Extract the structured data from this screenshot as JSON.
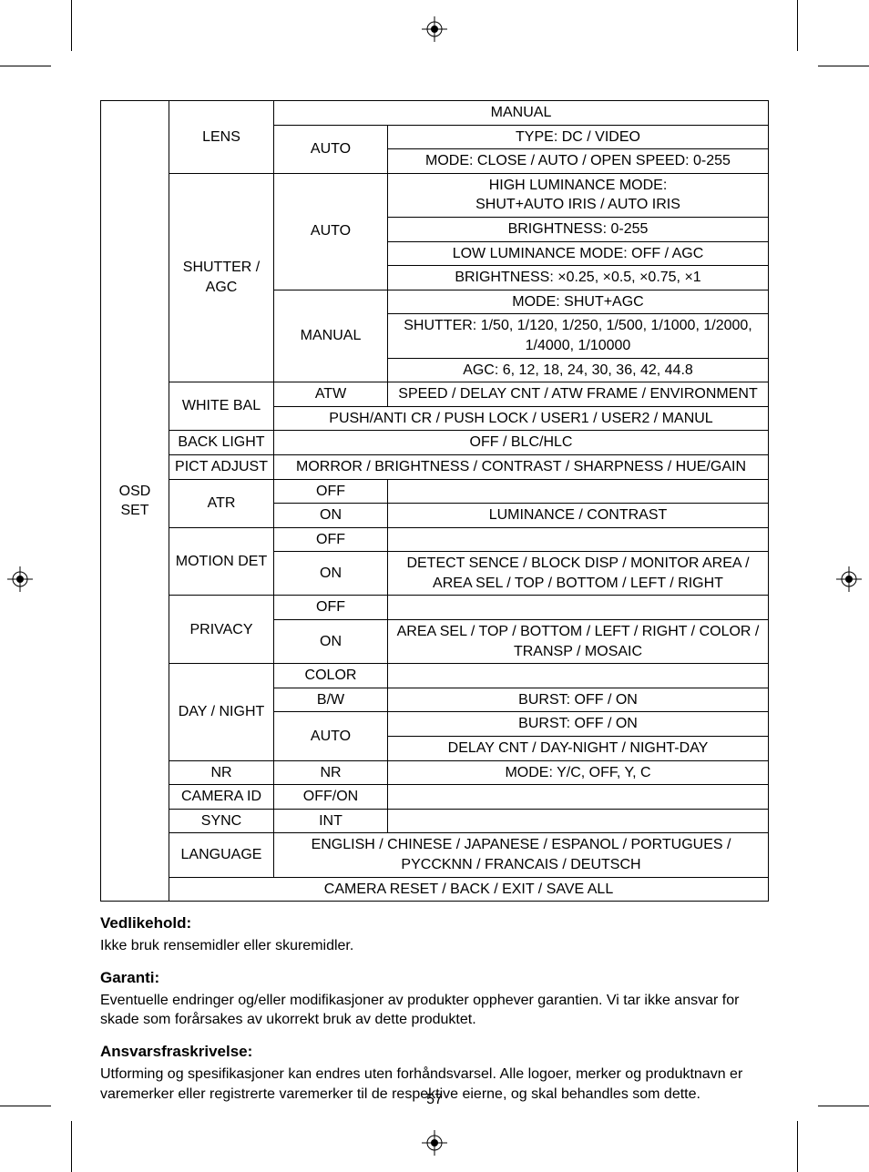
{
  "page_number": "57",
  "table": {
    "col1": "OSD SET",
    "rows": [
      {
        "c2": "LENS",
        "c2rowspan": 3,
        "c3": "MANUAL",
        "c3colspan": 2
      },
      {
        "c3": "AUTO",
        "c3rowspan": 2,
        "c4": "TYPE: DC / VIDEO"
      },
      {
        "c4": "MODE: CLOSE / AUTO / OPEN SPEED: 0-255"
      },
      {
        "c2": "SHUTTER / AGC",
        "c2rowspan": 7,
        "c3": "AUTO",
        "c3rowspan": 4,
        "c4": "HIGH LUMINANCE MODE:\nSHUT+AUTO IRIS / AUTO IRIS"
      },
      {
        "c4": "BRIGHTNESS: 0-255"
      },
      {
        "c4": "LOW LUMINANCE MODE: OFF / AGC"
      },
      {
        "c4": "BRIGHTNESS: ×0.25, ×0.5, ×0.75, ×1"
      },
      {
        "c3": "MANUAL",
        "c3rowspan": 3,
        "c4": "MODE: SHUT+AGC"
      },
      {
        "c4": "SHUTTER: 1/50, 1/120, 1/250, 1/500, 1/1000, 1/2000, 1/4000, 1/10000"
      },
      {
        "c4": "AGC: 6, 12, 18, 24, 30, 36, 42, 44.8"
      },
      {
        "c2": "WHITE BAL",
        "c2rowspan": 2,
        "c3": "ATW",
        "c4": "SPEED / DELAY CNT / ATW FRAME / ENVIRONMENT"
      },
      {
        "c3": "PUSH/ANTI CR / PUSH LOCK / USER1 / USER2 / MANUL",
        "c3colspan": 2
      },
      {
        "c2": "BACK LIGHT",
        "c3": "OFF / BLC/HLC",
        "c3colspan": 2
      },
      {
        "c2": "PICT ADJUST",
        "c3": "MORROR / BRIGHTNESS / CONTRAST / SHARPNESS / HUE/GAIN",
        "c3colspan": 2
      },
      {
        "c2": "ATR",
        "c2rowspan": 2,
        "c3": "OFF",
        "c4": ""
      },
      {
        "c3": "ON",
        "c4": "LUMINANCE / CONTRAST"
      },
      {
        "c2": "MOTION DET",
        "c2rowspan": 2,
        "c3": "OFF",
        "c4": ""
      },
      {
        "c3": "ON",
        "c4": "DETECT SENCE / BLOCK DISP / MONITOR AREA / AREA SEL / TOP / BOTTOM / LEFT / RIGHT"
      },
      {
        "c2": "PRIVACY",
        "c2rowspan": 2,
        "c3": "OFF",
        "c4": ""
      },
      {
        "c3": "ON",
        "c4": "AREA SEL / TOP / BOTTOM / LEFT / RIGHT / COLOR / TRANSP / MOSAIC"
      },
      {
        "c2": "DAY / NIGHT",
        "c2rowspan": 4,
        "c3": "COLOR",
        "c4": ""
      },
      {
        "c3": "B/W",
        "c4": "BURST: OFF / ON"
      },
      {
        "c3": "AUTO",
        "c3rowspan": 2,
        "c4": "BURST: OFF / ON"
      },
      {
        "c4": "DELAY CNT / DAY-NIGHT / NIGHT-DAY"
      },
      {
        "c2": "NR",
        "c3": "NR",
        "c4": "MODE: Y/C, OFF, Y, C"
      },
      {
        "c2": "CAMERA ID",
        "c3": "OFF/ON",
        "c4": ""
      },
      {
        "c2": "SYNC",
        "c3": "INT",
        "c4": ""
      },
      {
        "c2": "LANGUAGE",
        "c3": "ENGLISH / CHINESE / JAPANESE / ESPANOL / PORTUGUES / PYCCKNN / FRANCAIS / DEUTSCH",
        "c3colspan": 2
      },
      {
        "c2": "CAMERA RESET / BACK / EXIT / SAVE ALL",
        "c2colspan": 3
      }
    ]
  },
  "sections": [
    {
      "heading": "Vedlikehold:",
      "body": "Ikke bruk rensemidler eller skuremidler."
    },
    {
      "heading": "Garanti:",
      "body": "Eventuelle endringer og/eller modifikasjoner av produkter opphever garantien. Vi tar ikke ansvar for skade som forårsakes av ukorrekt bruk av dette produktet."
    },
    {
      "heading": "Ansvarsfraskrivelse:",
      "body": "Utforming og spesifikasjoner kan endres uten forhåndsvarsel. Alle logoer, merker og produktnavn er varemerker eller registrerte varemerker til de respektive eierne, og skal behandles som dette."
    }
  ]
}
